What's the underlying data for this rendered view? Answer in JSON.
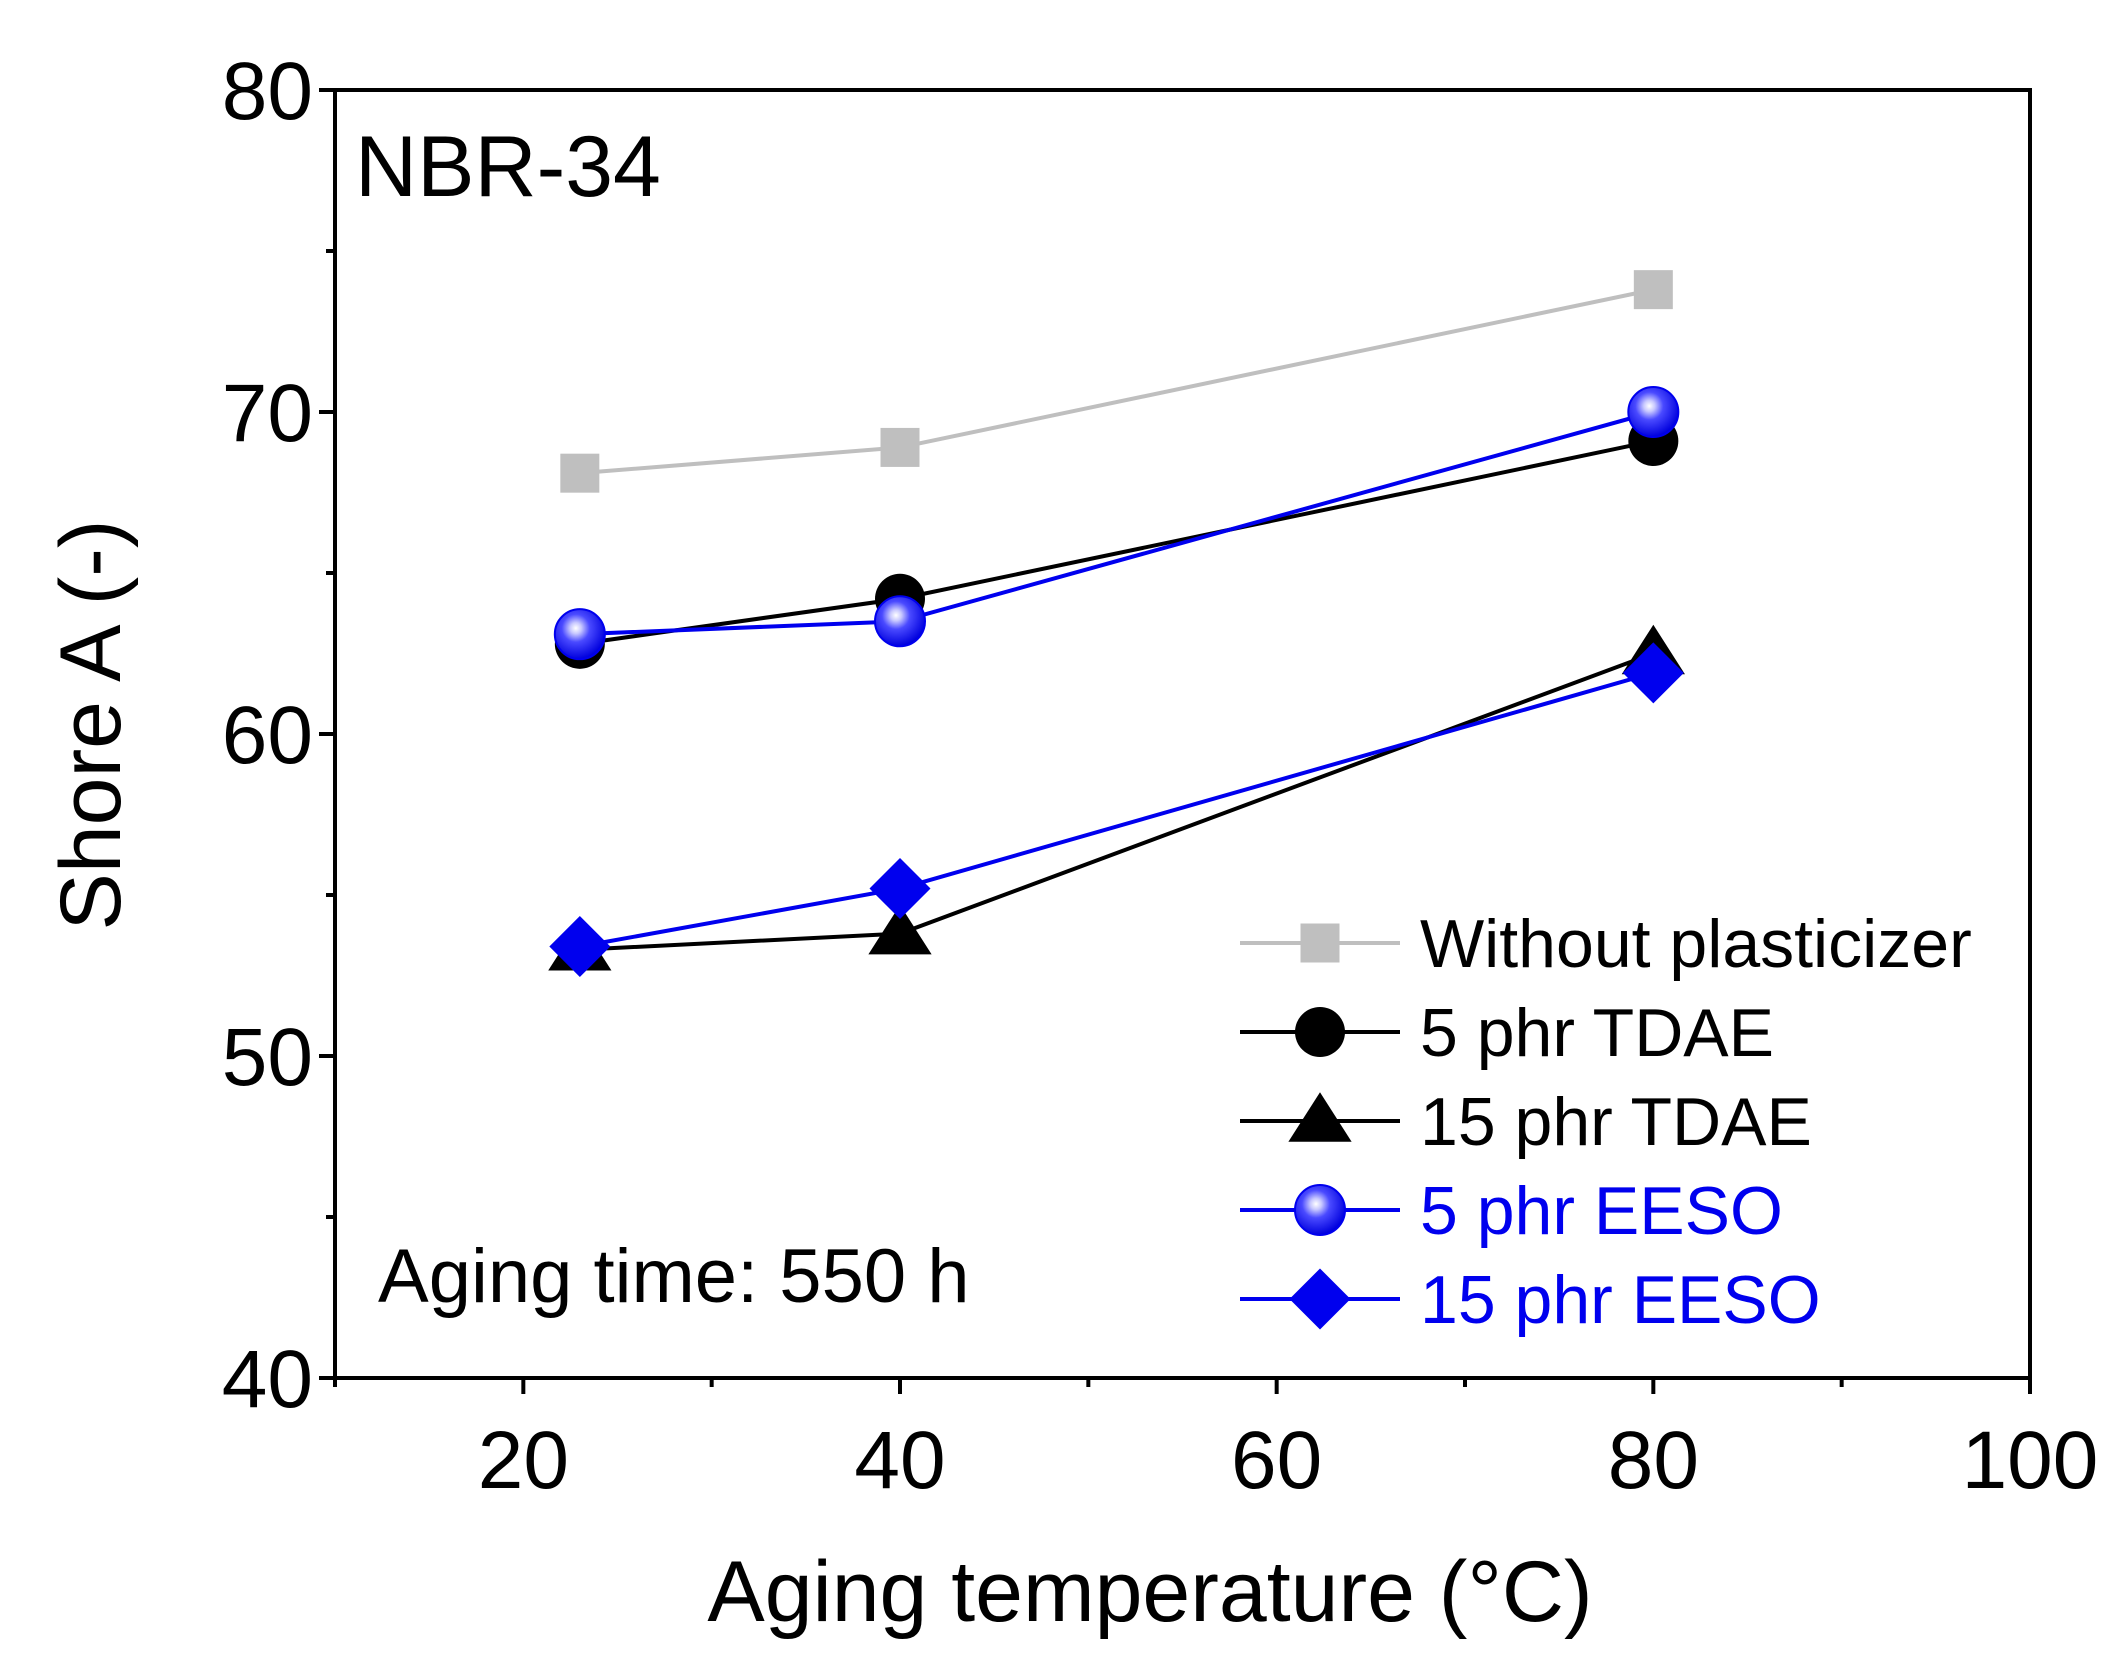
{
  "chart_data": {
    "type": "line",
    "title": "",
    "xlabel": "Aging temperature (°C)",
    "ylabel": "Shore A (-)",
    "xlim": [
      10,
      100
    ],
    "ylim": [
      40,
      80
    ],
    "xticks": [
      20,
      40,
      60,
      80,
      100
    ],
    "yticks": [
      40,
      50,
      60,
      70,
      80
    ],
    "x_minor_ticks": [
      10,
      30,
      50,
      70,
      90
    ],
    "y_minor_ticks": [
      45,
      55,
      65,
      75
    ],
    "grid": false,
    "legend_position": "bottom-right",
    "annotations": {
      "sample": "NBR-34",
      "aging_time": "Aging time: 550 h"
    },
    "series": [
      {
        "name": "Without plasticizer",
        "marker": "square",
        "color": "#bfbfbf",
        "x": [
          23,
          40,
          80
        ],
        "y": [
          68.1,
          68.9,
          73.8
        ],
        "err": [
          0.3,
          0.3,
          0.3
        ]
      },
      {
        "name": "5 phr TDAE",
        "marker": "circle",
        "color": "#000000",
        "x": [
          23,
          40,
          80
        ],
        "y": [
          62.8,
          64.2,
          69.1
        ],
        "err": [
          0.3,
          0.3,
          0.3
        ]
      },
      {
        "name": "15 phr TDAE",
        "marker": "triangle",
        "color": "#000000",
        "x": [
          23,
          40,
          80
        ],
        "y": [
          53.3,
          53.8,
          62.5
        ],
        "err": [
          0.3,
          0.3,
          0.3
        ]
      },
      {
        "name": "5 phr EESO",
        "marker": "circle-shaded",
        "color": "#0000ee",
        "x": [
          23,
          40,
          80
        ],
        "y": [
          63.1,
          63.5,
          70.0
        ],
        "err": [
          0.3,
          0.3,
          0.3
        ]
      },
      {
        "name": "15 phr EESO",
        "marker": "diamond",
        "color": "#0000ee",
        "x": [
          23,
          40,
          80
        ],
        "y": [
          53.4,
          55.2,
          61.9
        ],
        "err": [
          0.3,
          0.3,
          0.3
        ]
      }
    ]
  }
}
